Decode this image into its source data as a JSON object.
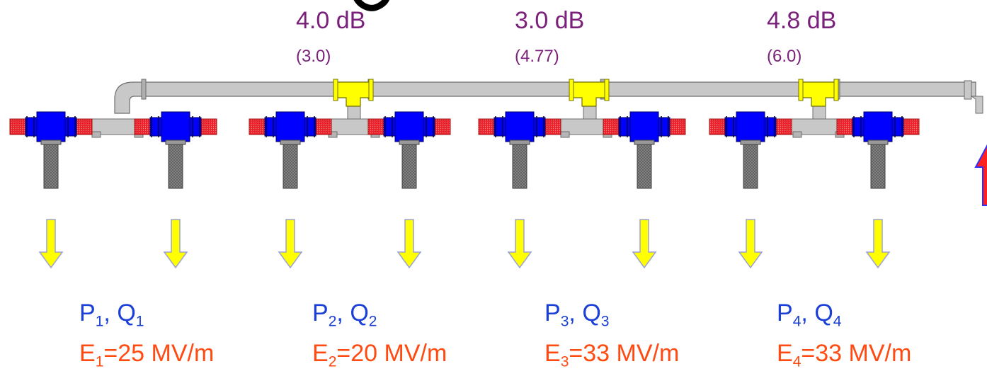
{
  "couplers": [
    {
      "db": "4.0 dB",
      "alt": "(3.0)"
    },
    {
      "db": "3.0 dB",
      "alt": "(4.77)"
    },
    {
      "db": "4.8 dB",
      "alt": "(6.0)"
    }
  ],
  "cavities": [
    {
      "p": "P",
      "q": "Q",
      "sub": "1",
      "e_prefix": "E",
      "e_value": "=25 MV/m"
    },
    {
      "p": "P",
      "q": "Q",
      "sub": "2",
      "e_prefix": "E",
      "e_value": "=20 MV/m"
    },
    {
      "p": "P",
      "q": "Q",
      "sub": "3",
      "e_prefix": "E",
      "e_value": "=33 MV/m"
    },
    {
      "p": "P",
      "q": "Q",
      "sub": "4",
      "e_prefix": "E",
      "e_value": "=33 MV/m"
    }
  ],
  "colors": {
    "pipe": "#c8c8c8",
    "pipe_outline": "#6e6e6e",
    "coupler": "#ffff00",
    "circulator": "#0000ff",
    "load": "#e8202a",
    "stub": "#8a8a8a",
    "arrow": "#ffff00",
    "arrow_outline": "#9aa2d8",
    "input_arrow": "#ff2020"
  },
  "icons": {
    "output_arrow": "arrow-down-icon",
    "input_arrow": "arrow-up-icon"
  }
}
